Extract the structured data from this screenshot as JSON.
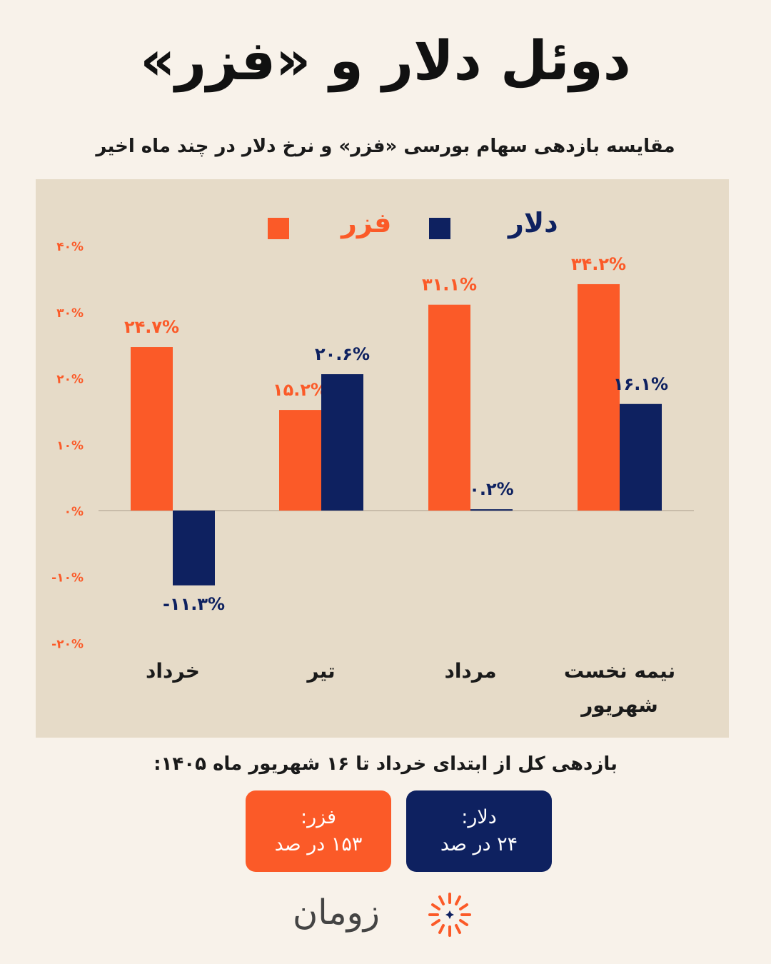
{
  "title": "دوئل دلار و «فزر»",
  "subtitle": "مقایسه بازدهی سهام بورسی «فزر» و نرخ دلار در چند ماه اخیر",
  "colors": {
    "fazr": "#fb5a28",
    "dollar": "#0e2160",
    "panel": "#e6dbc8",
    "background": "#f8f2ea"
  },
  "chart_data": {
    "type": "bar",
    "categories": [
      "خرداد",
      "تیر",
      "مرداد",
      "نیمه نخست شهریور"
    ],
    "series": [
      {
        "name": "فزر",
        "values": [
          24.7,
          15.2,
          31.1,
          34.2
        ],
        "labels": [
          "۲۴.۷%",
          "۱۵.۲%",
          "۳۱.۱%",
          "۳۴.۲%"
        ],
        "color": "#fb5a28"
      },
      {
        "name": "دلار",
        "values": [
          -11.3,
          20.6,
          0.2,
          16.1
        ],
        "labels": [
          "-۱۱.۳%",
          "۲۰.۶%",
          "۰.۲%",
          "۱۶.۱%"
        ],
        "color": "#0e2160"
      }
    ],
    "yticks": [
      40,
      30,
      20,
      10,
      0,
      -10,
      -20
    ],
    "ytick_labels": [
      "۴۰%",
      "۳۰%",
      "۲۰%",
      "۱۰%",
      "۰%",
      "-۱۰%",
      "-۲۰%"
    ],
    "ylim": [
      -20,
      40
    ],
    "legend_position": "top",
    "grid": false
  },
  "total": {
    "label": "بازدهی کل از ابتدای خرداد تا ۱۶ شهریور ماه ۱۴۰۵:",
    "fazr": {
      "name": "فزر:",
      "value": "۱۵۳ در صد"
    },
    "dollar": {
      "name": "دلار:",
      "value": "۲۴ در صد"
    }
  },
  "brand": {
    "name": "زومان"
  }
}
